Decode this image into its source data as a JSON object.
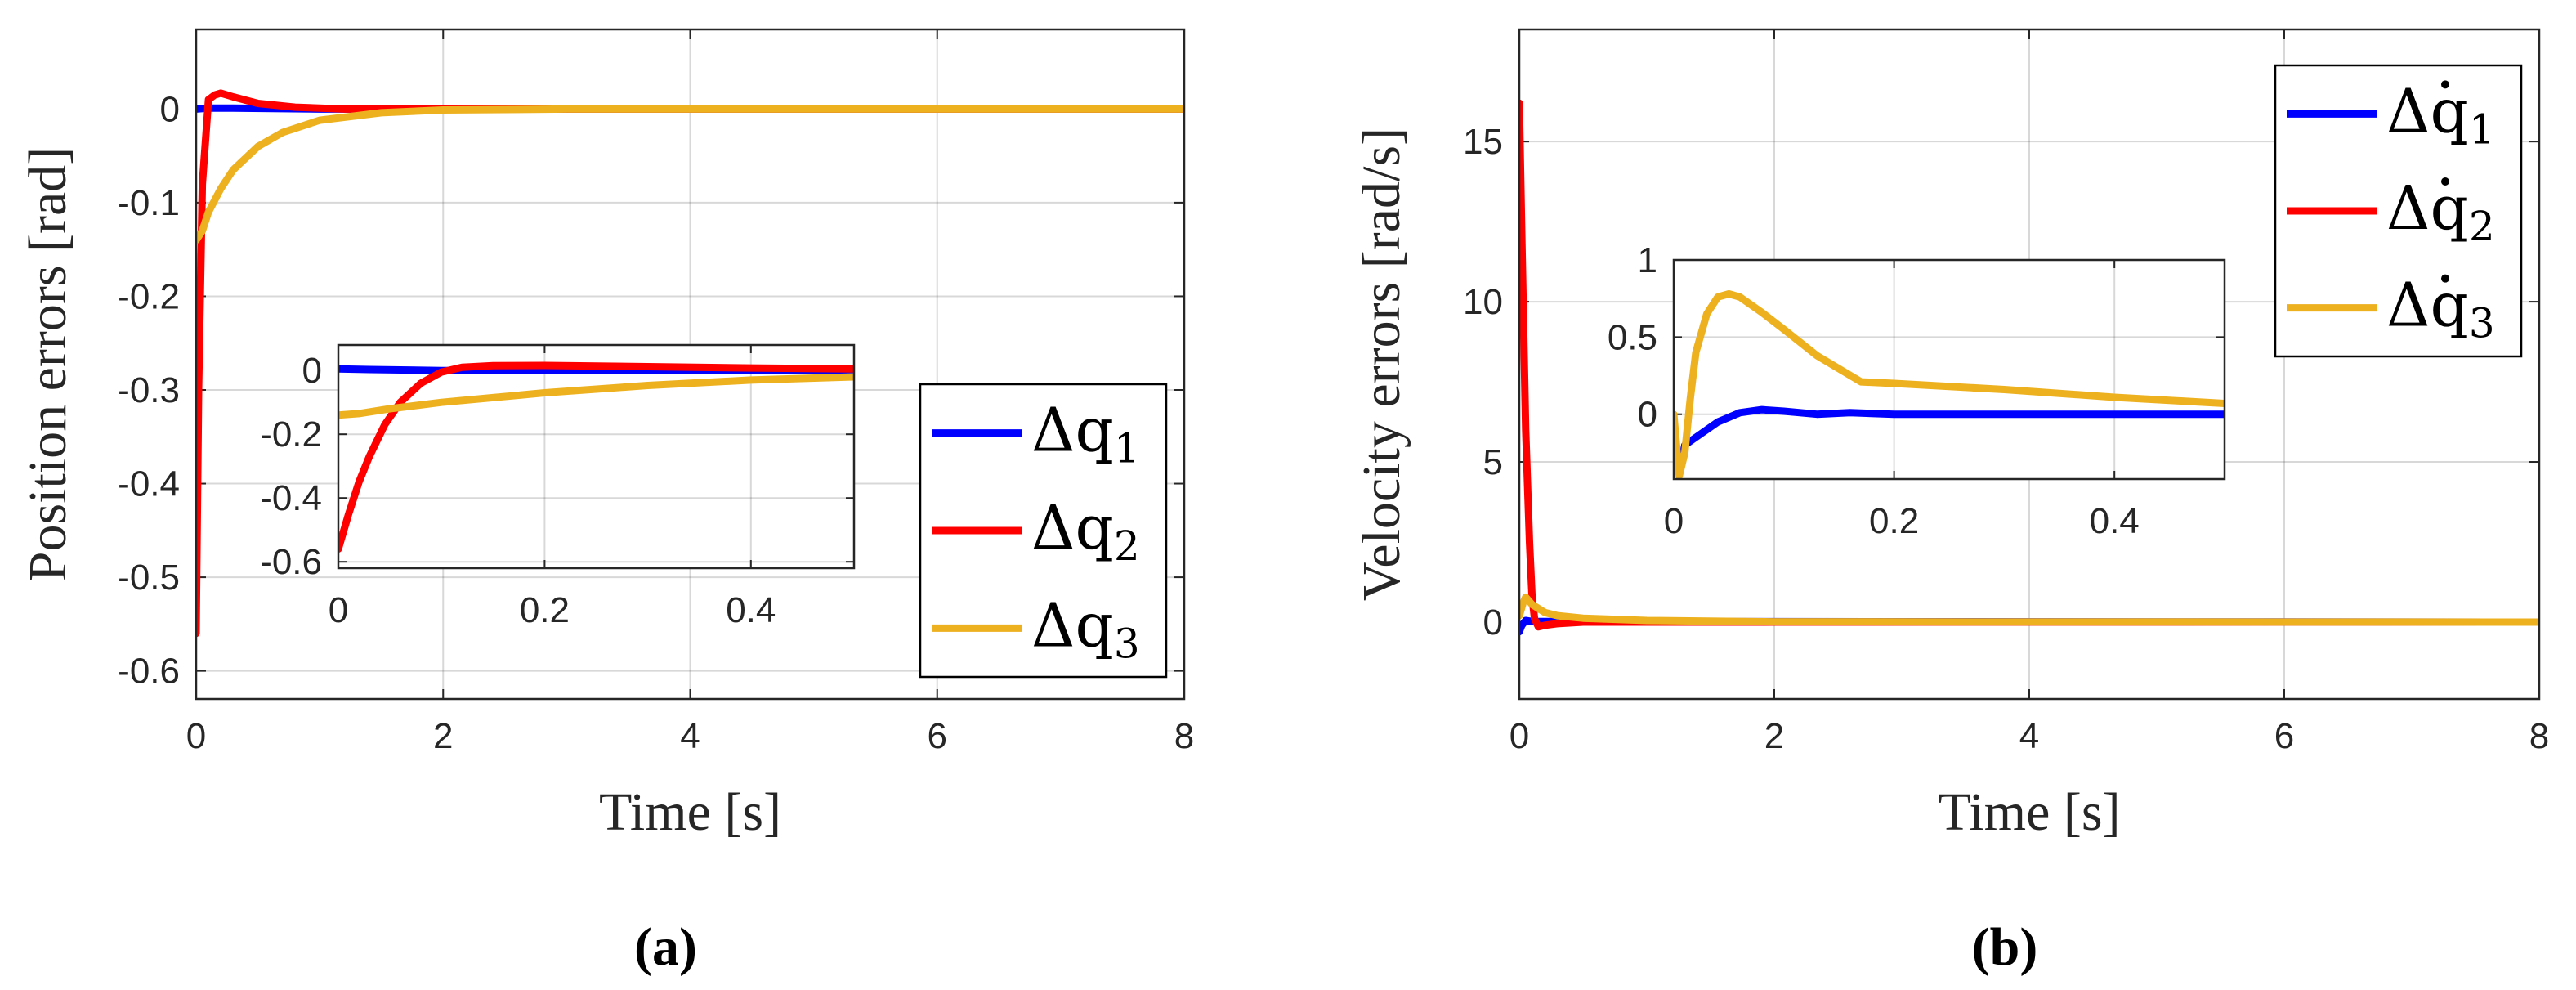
{
  "colors": {
    "q1": "#0000FF",
    "q2": "#FF0000",
    "q3": "#EDB120",
    "axis": "#262626",
    "grid": "#262626"
  },
  "chart_data": [
    {
      "id": "a",
      "type": "line",
      "panel_label": "(a)",
      "xlabel": "Time [s]",
      "ylabel": "Position errors [rad]",
      "xlim": [
        0,
        8
      ],
      "ylim": [
        -0.63,
        0.085
      ],
      "xticks": [
        0,
        2,
        4,
        6,
        8
      ],
      "xtick_labels": [
        "0",
        "2",
        "4",
        "6",
        "8"
      ],
      "yticks": [
        0,
        -0.1,
        -0.2,
        -0.3,
        -0.4,
        -0.5,
        -0.6
      ],
      "ytick_labels": [
        "0",
        "-0.1",
        "-0.2",
        "-0.3",
        "-0.4",
        "-0.5",
        "-0.6"
      ],
      "grid": true,
      "legend_position": "bottom-right",
      "series": [
        {
          "key": "q1",
          "name": "Δq",
          "sub": "1",
          "dot": false,
          "x": [
            0,
            0.1,
            0.3,
            1,
            8
          ],
          "y": [
            0,
            0.001,
            0.001,
            0,
            0
          ]
        },
        {
          "key": "q2",
          "name": "Δq",
          "sub": "2",
          "dot": false,
          "x": [
            0,
            0.02,
            0.05,
            0.1,
            0.15,
            0.2,
            0.3,
            0.5,
            0.8,
            1.2,
            8
          ],
          "y": [
            -0.56,
            -0.3,
            -0.08,
            0.01,
            0.015,
            0.017,
            0.013,
            0.006,
            0.002,
            0,
            0
          ]
        },
        {
          "key": "q3",
          "name": "Δq",
          "sub": "3",
          "dot": false,
          "x": [
            0,
            0.05,
            0.1,
            0.2,
            0.3,
            0.5,
            0.7,
            1.0,
            1.5,
            2.0,
            3.0,
            8
          ],
          "y": [
            -0.14,
            -0.13,
            -0.11,
            -0.085,
            -0.065,
            -0.04,
            -0.025,
            -0.012,
            -0.004,
            -0.001,
            0,
            0
          ]
        }
      ],
      "inset": {
        "xlim": [
          0,
          0.5
        ],
        "ylim": [
          -0.62,
          0.08
        ],
        "xticks": [
          0,
          0.2,
          0.4
        ],
        "xtick_labels": [
          "0",
          "0.2",
          "0.4"
        ],
        "yticks": [
          0,
          -0.2,
          -0.4,
          -0.6
        ],
        "ytick_labels": [
          "0",
          "-0.2",
          "-0.4",
          "-0.6"
        ],
        "series": [
          {
            "key": "q1",
            "x": [
              0,
              0.03,
              0.1,
              0.5
            ],
            "y": [
              0.005,
              0.003,
              0,
              0
            ]
          },
          {
            "key": "q2",
            "x": [
              0,
              0.01,
              0.02,
              0.03,
              0.045,
              0.06,
              0.08,
              0.1,
              0.12,
              0.15,
              0.2,
              0.3,
              0.4,
              0.5
            ],
            "y": [
              -0.56,
              -0.45,
              -0.35,
              -0.27,
              -0.17,
              -0.1,
              -0.04,
              -0.005,
              0.01,
              0.015,
              0.016,
              0.012,
              0.008,
              0.005
            ]
          },
          {
            "key": "q3",
            "x": [
              0,
              0.02,
              0.05,
              0.1,
              0.15,
              0.2,
              0.3,
              0.4,
              0.5
            ],
            "y": [
              -0.14,
              -0.135,
              -0.12,
              -0.1,
              -0.085,
              -0.07,
              -0.047,
              -0.03,
              -0.02
            ]
          }
        ]
      }
    },
    {
      "id": "b",
      "type": "line",
      "panel_label": "(b)",
      "xlabel": "Time [s]",
      "ylabel": "Velocity errors [rad/s]",
      "xlim": [
        0,
        8
      ],
      "ylim": [
        -2.4,
        18.5
      ],
      "xticks": [
        0,
        2,
        4,
        6,
        8
      ],
      "xtick_labels": [
        "0",
        "2",
        "4",
        "6",
        "8"
      ],
      "yticks": [
        0,
        5,
        10,
        15
      ],
      "ytick_labels": [
        "0",
        "5",
        "10",
        "15"
      ],
      "grid": true,
      "legend_position": "top-right",
      "series": [
        {
          "key": "q1",
          "name": "Δq",
          "sub": "1",
          "dot": true,
          "x": [
            0,
            0.02,
            0.05,
            0.1,
            8
          ],
          "y": [
            -0.3,
            -0.1,
            0.05,
            0.02,
            0
          ]
        },
        {
          "key": "q2",
          "name": "Δq",
          "sub": "2",
          "dot": true,
          "x": [
            0,
            0.02,
            0.05,
            0.08,
            0.1,
            0.12,
            0.15,
            0.2,
            0.3,
            0.5,
            8
          ],
          "y": [
            16.2,
            12,
            6,
            2.5,
            0.8,
            0.1,
            -0.15,
            -0.1,
            -0.05,
            0,
            0
          ]
        },
        {
          "key": "q3",
          "name": "Δq",
          "sub": "3",
          "dot": true,
          "x": [
            0,
            0.03,
            0.05,
            0.1,
            0.2,
            0.3,
            0.5,
            1.0,
            2.0,
            8
          ],
          "y": [
            0.2,
            0.6,
            0.78,
            0.55,
            0.3,
            0.2,
            0.12,
            0.05,
            0.01,
            0
          ]
        }
      ],
      "inset": {
        "xlim": [
          0,
          0.5
        ],
        "ylim": [
          -0.42,
          1.0
        ],
        "xticks": [
          0,
          0.2,
          0.4
        ],
        "xtick_labels": [
          "0",
          "0.2",
          "0.4"
        ],
        "yticks": [
          1,
          0.5,
          0
        ],
        "ytick_labels": [
          "1",
          "0.5",
          "0"
        ],
        "series": [
          {
            "key": "q1",
            "x": [
              0,
              0.005,
              0.01,
              0.02,
              0.04,
              0.06,
              0.08,
              0.1,
              0.13,
              0.16,
              0.2,
              0.5
            ],
            "y": [
              -0.05,
              -0.38,
              -0.2,
              -0.15,
              -0.05,
              0.01,
              0.03,
              0.02,
              0,
              0.01,
              0,
              0
            ]
          },
          {
            "key": "q3",
            "x": [
              0,
              0.005,
              0.01,
              0.015,
              0.02,
              0.03,
              0.04,
              0.05,
              0.06,
              0.08,
              0.1,
              0.13,
              0.17,
              0.2,
              0.3,
              0.4,
              0.5
            ],
            "y": [
              0,
              -0.4,
              -0.25,
              0.1,
              0.4,
              0.65,
              0.76,
              0.78,
              0.76,
              0.66,
              0.55,
              0.38,
              0.21,
              0.2,
              0.16,
              0.11,
              0.07
            ]
          }
        ]
      }
    }
  ]
}
